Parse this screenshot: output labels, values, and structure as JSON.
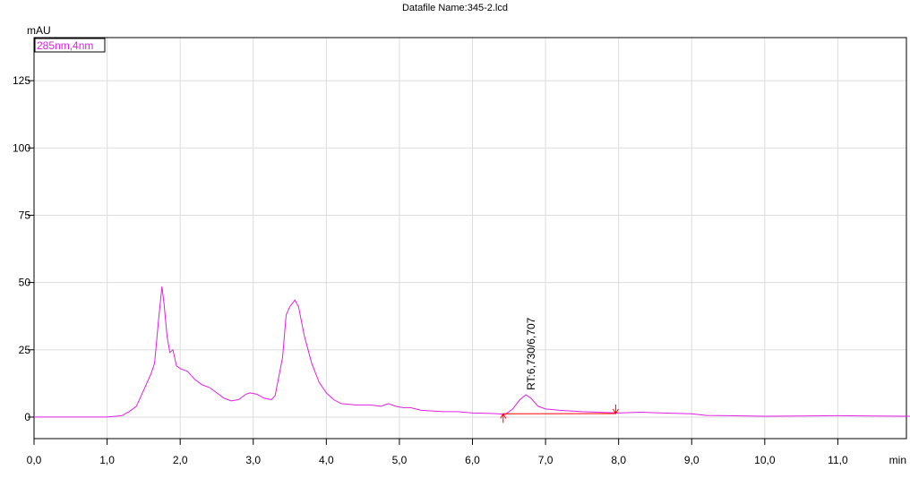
{
  "chart_data": {
    "type": "line",
    "title": "Datafile Name:345-2.lcd",
    "y_label": "mAU",
    "x_label": "min",
    "legend_label": "285nm,4nm",
    "annotation": "RT:6,730/6,707",
    "annotation_x": 6.73,
    "xlim": [
      0,
      12
    ],
    "ylim": [
      -8,
      141
    ],
    "xticks": [
      {
        "value": 0,
        "label": "0,0"
      },
      {
        "value": 1,
        "label": "1,0"
      },
      {
        "value": 2,
        "label": "2,0"
      },
      {
        "value": 3,
        "label": "3,0"
      },
      {
        "value": 4,
        "label": "4,0"
      },
      {
        "value": 5,
        "label": "5,0"
      },
      {
        "value": 6,
        "label": "6,0"
      },
      {
        "value": 7,
        "label": "7,0"
      },
      {
        "value": 8,
        "label": "8,0"
      },
      {
        "value": 9,
        "label": "9,0"
      },
      {
        "value": 10,
        "label": "10,0"
      },
      {
        "value": 11,
        "label": "11,0"
      }
    ],
    "yticks": [
      0,
      25,
      50,
      75,
      100,
      125
    ],
    "grid": true,
    "series": [
      {
        "color": "#e020e0",
        "x": [
          0,
          0.5,
          1.0,
          1.2,
          1.3,
          1.4,
          1.5,
          1.6,
          1.65,
          1.7,
          1.75,
          1.78,
          1.82,
          1.86,
          1.9,
          1.95,
          2.0,
          2.1,
          2.2,
          2.3,
          2.4,
          2.5,
          2.6,
          2.7,
          2.8,
          2.9,
          2.95,
          3.05,
          3.15,
          3.25,
          3.3,
          3.4,
          3.45,
          3.5,
          3.57,
          3.62,
          3.7,
          3.8,
          3.9,
          4.0,
          4.1,
          4.2,
          4.4,
          4.6,
          4.75,
          4.85,
          4.95,
          5.05,
          5.15,
          5.3,
          5.6,
          5.8,
          6.0,
          6.3,
          6.45,
          6.55,
          6.65,
          6.73,
          6.8,
          6.9,
          7.0,
          7.2,
          7.5,
          8.0,
          8.3,
          8.6,
          9.0,
          9.2,
          9.5,
          10.0,
          10.5,
          11.0,
          11.5,
          12.0
        ],
        "values": [
          0,
          0,
          0,
          0.5,
          2,
          4,
          10,
          16,
          20,
          35,
          48.5,
          42,
          30,
          24,
          25,
          19,
          18,
          17,
          14,
          12,
          11,
          9,
          7,
          6,
          6.5,
          8.5,
          9,
          8.5,
          7,
          6.5,
          8,
          22,
          38,
          41,
          43.5,
          41,
          30,
          20,
          13,
          9,
          6.5,
          5,
          4.5,
          4.5,
          4,
          5,
          4,
          3.5,
          3.5,
          2.5,
          2,
          2,
          1.5,
          1.3,
          1,
          3,
          6.5,
          8.3,
          7,
          4,
          3,
          2.5,
          2,
          1.5,
          1.8,
          1.5,
          1.2,
          0.6,
          0.5,
          0.3,
          0.4,
          0.5,
          0.4,
          0.3
        ]
      }
    ],
    "baseline": {
      "color": "#ff0000",
      "x": [
        6.42,
        7.96
      ],
      "values": [
        1.2,
        1.3
      ]
    }
  }
}
